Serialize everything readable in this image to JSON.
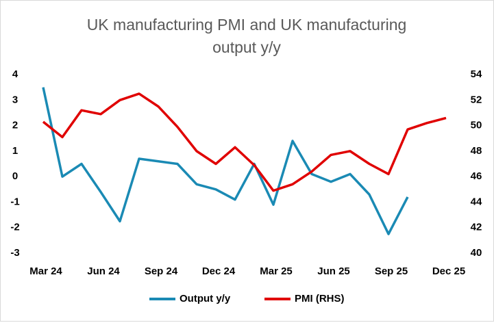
{
  "chart_data": {
    "type": "line",
    "title": [
      "UK manufacturing PMI and UK manufacturing",
      "output y/y"
    ],
    "categories": [
      "Mar 24",
      null,
      null,
      "Jun 24",
      null,
      null,
      "Sep 24",
      null,
      null,
      "Dec 24",
      null,
      null,
      "Mar 25",
      null,
      null,
      "Jun 25",
      null,
      null,
      "Sep 25",
      null,
      null,
      "Dec 25"
    ],
    "series": [
      {
        "name": "Output y/y",
        "color": "#1a8ab4",
        "axis": "y",
        "values": [
          3.5,
          0,
          0.5,
          -0.6,
          -1.75,
          0.7,
          0.6,
          0.5,
          -0.3,
          -0.5,
          -0.9,
          0.5,
          -1.1,
          1.4,
          0.1,
          -0.2,
          0.1,
          -0.7,
          -2.25,
          -0.8,
          null,
          null
        ]
      },
      {
        "name": "PMI (RHS)",
        "color": "#e00000",
        "axis": "y2",
        "values": [
          50.3,
          49.1,
          51.2,
          50.9,
          52.0,
          52.5,
          51.5,
          49.9,
          48.0,
          47.0,
          48.3,
          46.9,
          44.9,
          45.4,
          46.4,
          47.7,
          48.0,
          47.0,
          46.2,
          49.7,
          50.2,
          50.6
        ]
      }
    ],
    "ylim": [
      -3,
      4
    ],
    "yticks": [
      -3,
      -2,
      -1,
      0,
      1,
      2,
      3,
      4
    ],
    "y2lim": [
      40,
      54
    ],
    "y2ticks": [
      40,
      42,
      44,
      46,
      48,
      50,
      52,
      54
    ],
    "legend": "bottom"
  }
}
